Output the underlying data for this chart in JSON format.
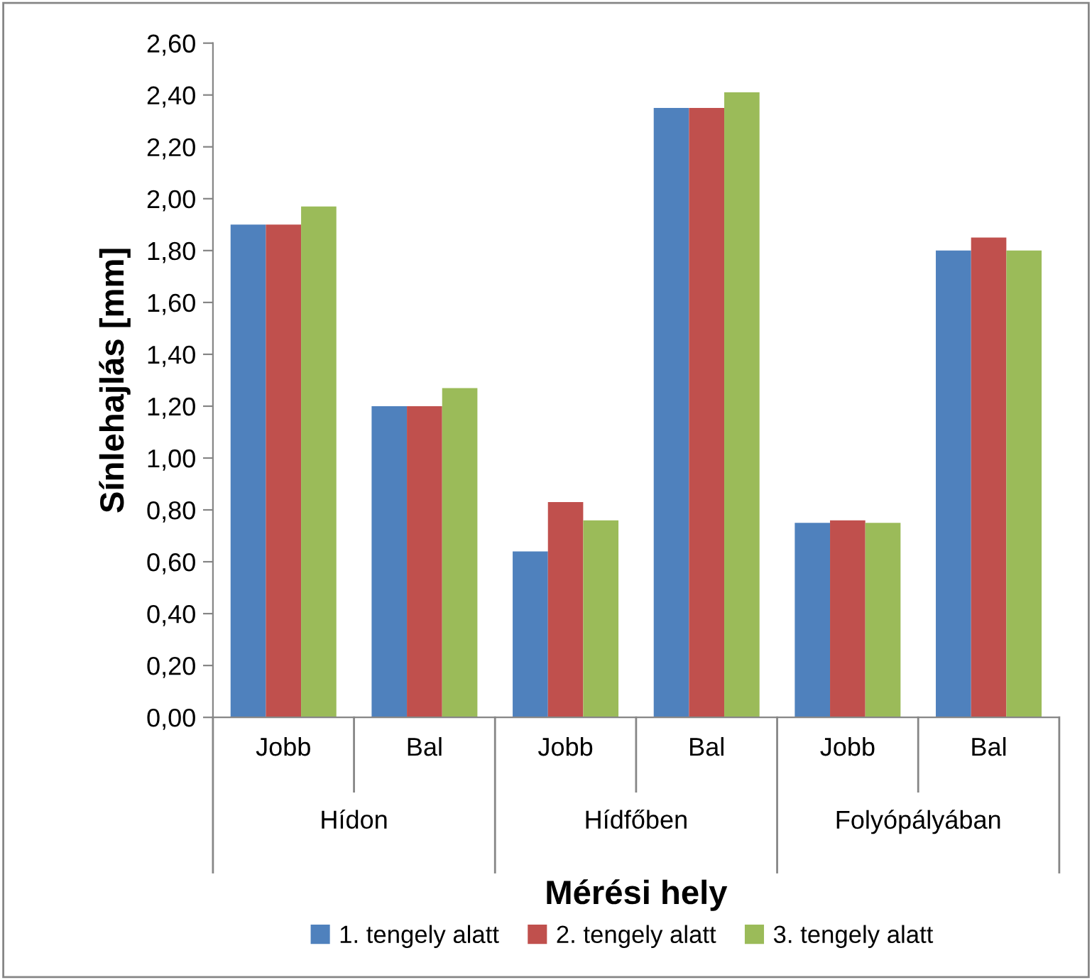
{
  "chart_data": {
    "type": "bar",
    "ylabel": "Sínlehajlás [mm]",
    "xlabel": "Mérési hely",
    "categories": [
      "Jobb",
      "Bal",
      "Jobb",
      "Bal",
      "Jobb",
      "Bal"
    ],
    "annotations": [
      "Hídon",
      "Hídfőben",
      "Folyópályában"
    ],
    "series": [
      {
        "name": "1. tengely alatt",
        "color": "#4f81bd",
        "values": [
          1.9,
          1.2,
          0.64,
          2.35,
          0.75,
          1.8
        ]
      },
      {
        "name": "2. tengely alatt",
        "color": "#c0504d",
        "values": [
          1.9,
          1.2,
          0.83,
          2.35,
          0.76,
          1.85
        ]
      },
      {
        "name": "3. tengely alatt",
        "color": "#9bbb59",
        "values": [
          1.97,
          1.27,
          0.76,
          2.41,
          0.75,
          1.8
        ]
      }
    ],
    "ylim": [
      0,
      2.6
    ],
    "yticks": [
      {
        "value": 0,
        "label": "0,00"
      },
      {
        "value": 0.2,
        "label": "0,20"
      },
      {
        "value": 0.4,
        "label": "0,40"
      },
      {
        "value": 0.6,
        "label": "0,60"
      },
      {
        "value": 0.8,
        "label": "0,80"
      },
      {
        "value": 1.0,
        "label": "1,00"
      },
      {
        "value": 1.2,
        "label": "1,20"
      },
      {
        "value": 1.4,
        "label": "1,40"
      },
      {
        "value": 1.6,
        "label": "1,60"
      },
      {
        "value": 1.8,
        "label": "1,80"
      },
      {
        "value": 2.0,
        "label": "2,00"
      },
      {
        "value": 2.2,
        "label": "2,20"
      },
      {
        "value": 2.4,
        "label": "2,40"
      },
      {
        "value": 2.6,
        "label": "2,60"
      }
    ],
    "grid": false,
    "legend": "bottom"
  }
}
